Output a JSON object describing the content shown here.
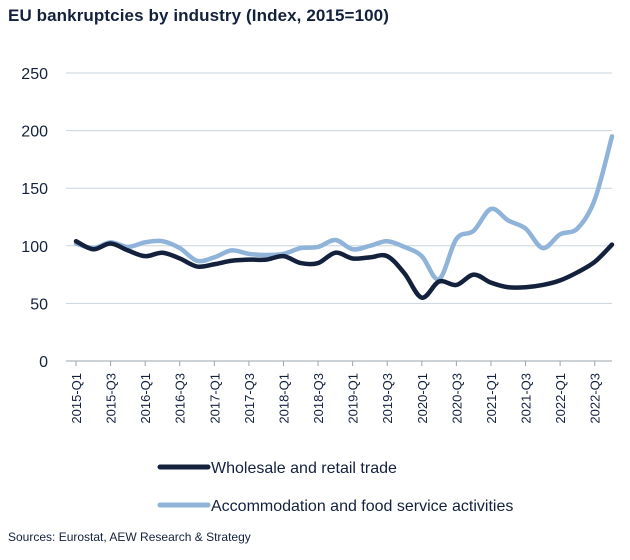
{
  "chart_data": {
    "type": "line",
    "title": "EU bankruptcies by industry (Index, 2015=100)",
    "xlabel": "",
    "ylabel": "",
    "ylim": [
      0,
      250
    ],
    "yticks": [
      0,
      50,
      100,
      150,
      200,
      250
    ],
    "grid": true,
    "legend_position": "bottom",
    "x": [
      "2015-Q1",
      "2015-Q2",
      "2015-Q3",
      "2015-Q4",
      "2016-Q1",
      "2016-Q2",
      "2016-Q3",
      "2016-Q4",
      "2017-Q1",
      "2017-Q2",
      "2017-Q3",
      "2017-Q4",
      "2018-Q1",
      "2018-Q2",
      "2018-Q3",
      "2018-Q4",
      "2019-Q1",
      "2019-Q2",
      "2019-Q3",
      "2019-Q4",
      "2020-Q1",
      "2020-Q2",
      "2020-Q3",
      "2020-Q4",
      "2021-Q1",
      "2021-Q2",
      "2021-Q3",
      "2021-Q4",
      "2022-Q1",
      "2022-Q2",
      "2022-Q3",
      "2022-Q4"
    ],
    "tick_labels": [
      "2015-Q1",
      "2015-Q3",
      "2016-Q1",
      "2016-Q3",
      "2017-Q1",
      "2017-Q3",
      "2018-Q1",
      "2018-Q3",
      "2019-Q1",
      "2019-Q3",
      "2020-Q1",
      "2020-Q3",
      "2021-Q1",
      "2021-Q3",
      "2022-Q1",
      "2022-Q3"
    ],
    "series": [
      {
        "name": "Wholesale and retail trade",
        "color": "#14213d",
        "values": [
          104,
          97,
          102,
          96,
          91,
          94,
          89,
          82,
          84,
          87,
          88,
          88,
          91,
          85,
          85,
          94,
          89,
          90,
          91,
          76,
          55,
          69,
          66,
          75,
          68,
          64,
          64,
          66,
          70,
          77,
          86,
          101
        ]
      },
      {
        "name": "Accommodation and food service activities",
        "color": "#8fb3d9",
        "values": [
          102,
          98,
          103,
          99,
          103,
          104,
          98,
          87,
          90,
          96,
          93,
          92,
          93,
          98,
          99,
          105,
          97,
          100,
          104,
          99,
          91,
          71,
          106,
          113,
          132,
          122,
          115,
          98,
          110,
          115,
          140,
          195
        ]
      }
    ]
  },
  "source": "Sources: Eurostat, AEW Research & Strategy"
}
